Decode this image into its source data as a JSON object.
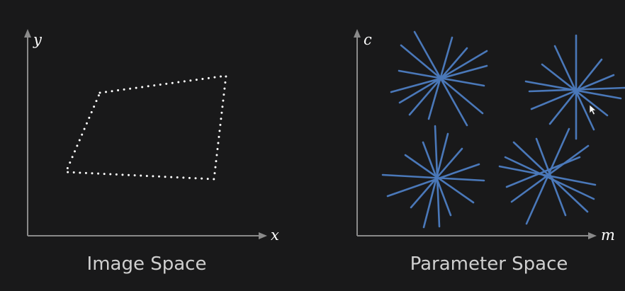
{
  "colors": {
    "background": "#19191a",
    "axis": "#8a8a8a",
    "points": "#ffffff",
    "lines": "#4a78b9",
    "caption": "#cfcfcf"
  },
  "image_space": {
    "y_label": "y",
    "x_label": "x",
    "caption": "Image Space",
    "shape": "quadrilateral drawn as a dotted outline of edge points"
  },
  "parameter_space": {
    "y_label": "c",
    "x_label": "m",
    "caption": "Parameter Space",
    "line_bundles": 4
  },
  "cursor_icon": "mouse-pointer-icon"
}
